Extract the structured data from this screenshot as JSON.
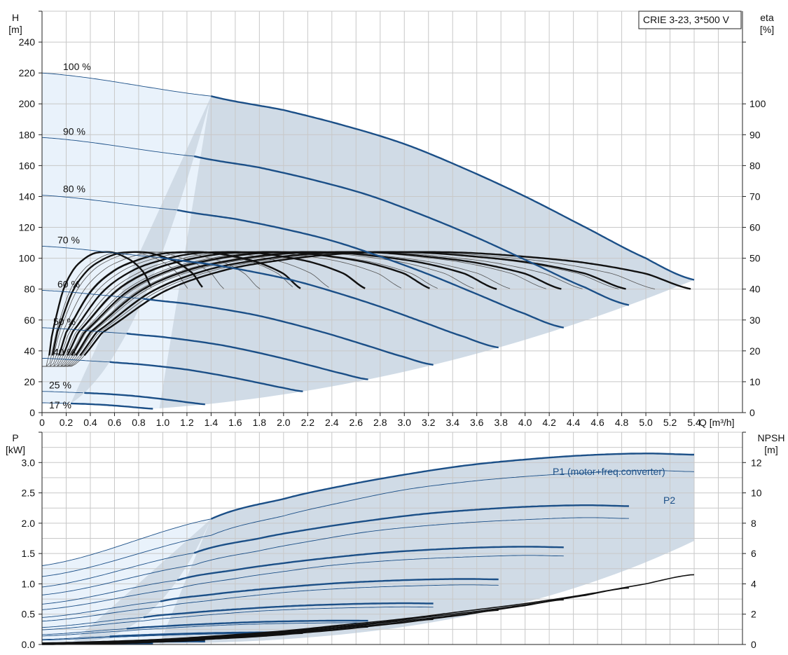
{
  "title_box": "CRIE 3-23, 3*500 V",
  "colors": {
    "curve_blue": "#1b4f87",
    "area_light": "#e9f2fb",
    "area_dark": "#d0dbe6",
    "eta_black": "#111111"
  },
  "chart_data": [
    {
      "type": "line",
      "name": "QH",
      "ylabel_left": [
        "H",
        "[m]"
      ],
      "ylabel_right": [
        "eta",
        "[%]"
      ],
      "xlabel": "Q [m³/h]",
      "xlim": [
        0,
        5.8
      ],
      "ylim_left": [
        0,
        260
      ],
      "ylim_right": [
        0,
        130
      ],
      "x_ticks": [
        0,
        0.2,
        0.4,
        0.6,
        0.8,
        1.0,
        1.2,
        1.4,
        1.6,
        1.8,
        2.0,
        2.2,
        2.4,
        2.6,
        2.8,
        3.0,
        3.2,
        3.4,
        3.6,
        3.8,
        4.0,
        4.2,
        4.4,
        4.6,
        4.8,
        5.0,
        5.2,
        5.4
      ],
      "x_tick_labels": [
        "0",
        "0.2",
        "0.4",
        "0.6",
        "0.8",
        "1.0",
        "1.2",
        "1.4",
        "1.6",
        "1.8",
        "2.0",
        "2.2",
        "2.4",
        "2.6",
        "2.8",
        "3.0",
        "3.2",
        "3.4",
        "3.6",
        "3.8",
        "4.0",
        "4.2",
        "4.4",
        "4.6",
        "4.8",
        "5.0",
        "5.2",
        "5.4"
      ],
      "y_ticks_left": [
        0,
        20,
        40,
        60,
        80,
        100,
        120,
        140,
        160,
        180,
        200,
        220,
        240
      ],
      "y_tick_labels_left": [
        "0",
        "20",
        "40",
        "60",
        "80",
        "100",
        "120",
        "140",
        "160",
        "180",
        "200",
        "220",
        "240"
      ],
      "y_ticks_right": [
        0,
        10,
        20,
        30,
        40,
        50,
        60,
        70,
        80,
        90,
        100
      ],
      "y_tick_labels_right": [
        "0",
        "10",
        "20",
        "30",
        "40",
        "50",
        "60",
        "70",
        "80",
        "90",
        "100"
      ],
      "speed_labels": [
        "100 %",
        "90 %",
        "80 %",
        "70 %",
        "60 %",
        "50 %",
        "40 %",
        "25 %",
        "17 %"
      ],
      "speeds": [
        1.0,
        0.9,
        0.8,
        0.7,
        0.6,
        0.5,
        0.4,
        0.25,
        0.17
      ],
      "head_curve_100": {
        "q": [
          0,
          1.4,
          2.0,
          2.5,
          3.0,
          3.5,
          4.0,
          4.5,
          5.0,
          5.4
        ],
        "h": [
          220,
          205,
          196,
          186,
          174,
          158,
          140,
          120,
          100,
          86
        ]
      },
      "eta_curve_100": {
        "q": [
          0.25,
          0.5,
          1.0,
          1.5,
          2.0,
          2.5,
          3.0,
          3.5,
          4.0,
          4.5,
          5.0,
          5.38
        ],
        "eta": [
          15,
          26,
          39,
          46,
          49.5,
          51.5,
          52,
          51.8,
          50.5,
          48.5,
          45,
          40
        ]
      }
    },
    {
      "type": "line",
      "name": "Power-NPSH",
      "ylabel_left": [
        "P",
        "[kW]"
      ],
      "ylabel_right": [
        "NPSH",
        "[m]"
      ],
      "xlim": [
        0,
        5.8
      ],
      "ylim_left": [
        0,
        3.5
      ],
      "ylim_right": [
        0,
        14
      ],
      "y_ticks_left": [
        0,
        0.5,
        1.0,
        1.5,
        2.0,
        2.5,
        3.0
      ],
      "y_tick_labels_left": [
        "0.0",
        "0.5",
        "1.0",
        "1.5",
        "2.0",
        "2.5",
        "3.0"
      ],
      "y_ticks_right": [
        0,
        2,
        4,
        6,
        8,
        10,
        12
      ],
      "y_tick_labels_right": [
        "0",
        "2",
        "4",
        "6",
        "8",
        "10",
        "12"
      ],
      "series_labels": [
        "P1 (motor+freq.converter)",
        "P2"
      ],
      "p1_curve_100": {
        "q": [
          0,
          1.4,
          2.0,
          2.5,
          3.0,
          3.5,
          4.0,
          4.5,
          5.0,
          5.4
        ],
        "p": [
          1.3,
          2.07,
          2.4,
          2.62,
          2.8,
          2.95,
          3.05,
          3.12,
          3.15,
          3.13
        ]
      },
      "p2_curve_100": {
        "q": [
          0,
          1.4,
          2.0,
          2.5,
          3.0,
          3.5,
          4.0,
          4.5,
          5.0,
          5.4
        ],
        "p": [
          1.12,
          1.8,
          2.12,
          2.35,
          2.55,
          2.68,
          2.77,
          2.83,
          2.87,
          2.85
        ]
      },
      "npsh_curve": {
        "q": [
          0,
          0.5,
          1.0,
          1.5,
          2.0,
          2.5,
          3.0,
          3.5,
          4.0,
          4.5,
          5.0,
          5.38
        ],
        "npsh": [
          0.1,
          0.2,
          0.35,
          0.6,
          0.9,
          1.3,
          1.7,
          2.2,
          2.7,
          3.3,
          4.0,
          4.6
        ]
      }
    }
  ]
}
